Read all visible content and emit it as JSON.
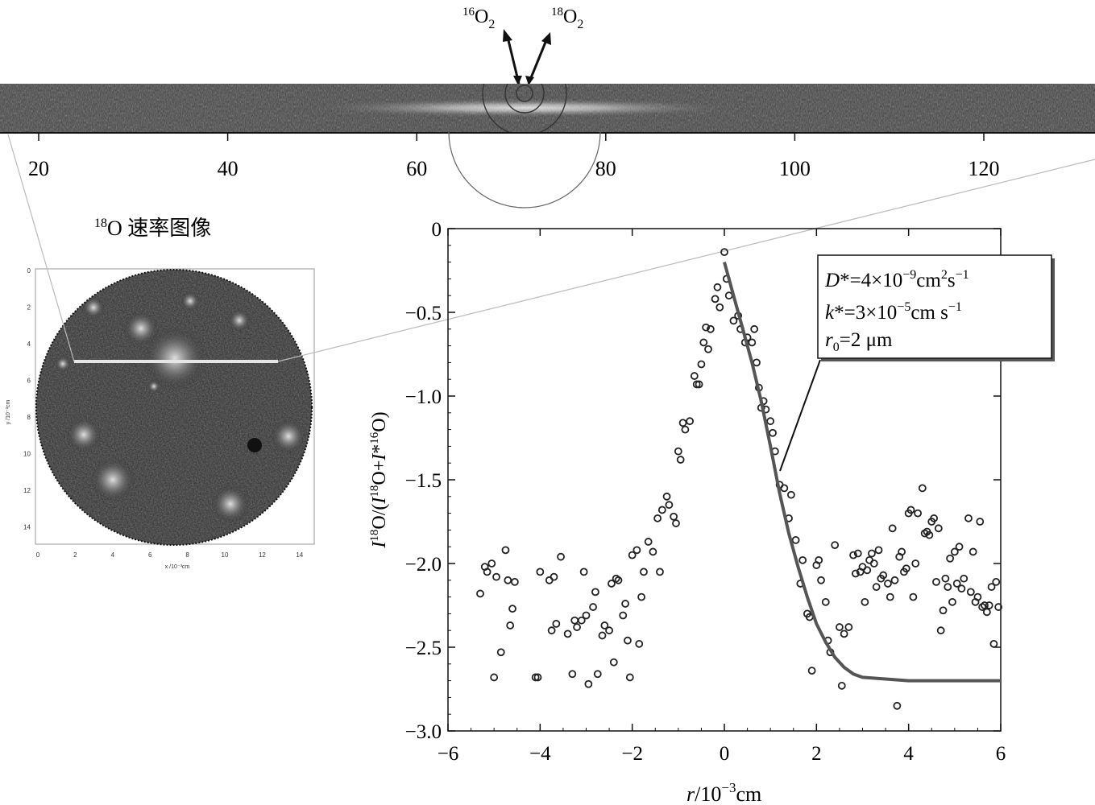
{
  "arrow_labels": {
    "left": {
      "sup": "16",
      "base": "O",
      "sub": "2"
    },
    "right": {
      "sup": "18",
      "base": "O",
      "sub": "2"
    }
  },
  "strip_ticks": [
    "20",
    "40",
    "60",
    "80",
    "100",
    "120"
  ],
  "inset": {
    "title_sup": "18",
    "title_main": "O 速率图像",
    "y_ticks": [
      "0",
      "2",
      "4",
      "6",
      "8",
      "10",
      "12",
      "14"
    ],
    "x_ticks": [
      "0",
      "2",
      "4",
      "6",
      "8",
      "10",
      "12",
      "14"
    ],
    "y_axis_label": "y /10⁻³cm",
    "x_axis_label": "x /10⁻³cm"
  },
  "legend": {
    "line1": {
      "italic": "D",
      "rest": "*=4×10",
      "sup": "−9",
      "unit": "cm",
      "unit_sup": "2",
      "unit_rest": "s",
      "unit_rest_sup": "−1"
    },
    "line2": {
      "italic": "k",
      "rest": "*=3×10",
      "sup": "−5",
      "unit": "cm s",
      "unit_sup": "−1"
    },
    "line3": {
      "italic": "r",
      "sub": "0",
      "rest": "=2 μm"
    }
  },
  "chart_data": {
    "type": "scatter",
    "xlabel": {
      "italic": "r",
      "rest": "/10",
      "sup": "−3",
      "unit": "cm"
    },
    "ylabel": "I18O/(I18O+I*16O)",
    "xlim": [
      -6,
      6
    ],
    "ylim": [
      -3.0,
      0
    ],
    "x_ticks": [
      "−6",
      "−4",
      "−2",
      "0",
      "2",
      "4",
      "6"
    ],
    "y_ticks": [
      "0",
      "−0.5",
      "−1.0",
      "−1.5",
      "−2.0",
      "−2.5",
      "−3.0"
    ],
    "series": [
      {
        "points": [
          [
            -5.3,
            -2.18
          ],
          [
            -5.2,
            -2.02
          ],
          [
            -5.15,
            -2.05
          ],
          [
            -5.05,
            -2.0
          ],
          [
            -5.0,
            -2.68
          ],
          [
            -4.95,
            -2.08
          ],
          [
            -4.85,
            -2.53
          ],
          [
            -4.75,
            -1.92
          ],
          [
            -4.7,
            -2.1
          ],
          [
            -4.65,
            -2.37
          ],
          [
            -4.6,
            -2.27
          ],
          [
            -4.55,
            -2.11
          ],
          [
            -4.1,
            -2.68
          ],
          [
            -4.05,
            -2.68
          ],
          [
            -4.0,
            -2.05
          ],
          [
            -3.8,
            -2.1
          ],
          [
            -3.75,
            -2.4
          ],
          [
            -3.7,
            -2.08
          ],
          [
            -3.65,
            -2.36
          ],
          [
            -3.55,
            -1.96
          ],
          [
            -3.4,
            -2.42
          ],
          [
            -3.3,
            -2.66
          ],
          [
            -3.25,
            -2.34
          ],
          [
            -3.2,
            -2.38
          ],
          [
            -3.1,
            -2.34
          ],
          [
            -3.05,
            -2.05
          ],
          [
            -3.0,
            -2.31
          ],
          [
            -2.95,
            -2.72
          ],
          [
            -2.85,
            -2.26
          ],
          [
            -2.8,
            -2.17
          ],
          [
            -2.75,
            -2.66
          ],
          [
            -2.65,
            -2.43
          ],
          [
            -2.6,
            -2.37
          ],
          [
            -2.5,
            -2.4
          ],
          [
            -2.45,
            -2.12
          ],
          [
            -2.4,
            -2.59
          ],
          [
            -2.35,
            -2.09
          ],
          [
            -2.3,
            -2.1
          ],
          [
            -2.2,
            -2.31
          ],
          [
            -2.15,
            -2.24
          ],
          [
            -2.1,
            -2.46
          ],
          [
            -2.05,
            -2.68
          ],
          [
            -2.0,
            -1.95
          ],
          [
            -1.9,
            -1.92
          ],
          [
            -1.85,
            -2.48
          ],
          [
            -1.8,
            -2.2
          ],
          [
            -1.75,
            -2.05
          ],
          [
            -1.65,
            -1.87
          ],
          [
            -1.55,
            -1.93
          ],
          [
            -1.45,
            -1.73
          ],
          [
            -1.4,
            -2.05
          ],
          [
            -1.35,
            -1.68
          ],
          [
            -1.25,
            -1.6
          ],
          [
            -1.2,
            -1.65
          ],
          [
            -1.1,
            -1.72
          ],
          [
            -1.05,
            -1.76
          ],
          [
            -1.0,
            -1.33
          ],
          [
            -0.95,
            -1.38
          ],
          [
            -0.9,
            -1.16
          ],
          [
            -0.85,
            -1.2
          ],
          [
            -0.75,
            -1.15
          ],
          [
            -0.65,
            -0.88
          ],
          [
            -0.6,
            -0.93
          ],
          [
            -0.55,
            -0.93
          ],
          [
            -0.5,
            -0.81
          ],
          [
            -0.45,
            -0.68
          ],
          [
            -0.4,
            -0.59
          ],
          [
            -0.35,
            -0.72
          ],
          [
            -0.3,
            -0.6
          ],
          [
            -0.2,
            -0.42
          ],
          [
            -0.15,
            -0.35
          ],
          [
            -0.1,
            -0.47
          ],
          [
            0.0,
            -0.14
          ],
          [
            0.05,
            -0.3
          ],
          [
            0.1,
            -0.4
          ],
          [
            0.2,
            -0.55
          ],
          [
            0.3,
            -0.52
          ],
          [
            0.35,
            -0.6
          ],
          [
            0.45,
            -0.68
          ],
          [
            0.5,
            -0.65
          ],
          [
            0.6,
            -0.68
          ],
          [
            0.65,
            -0.6
          ],
          [
            0.7,
            -0.8
          ],
          [
            0.75,
            -0.95
          ],
          [
            0.8,
            -1.07
          ],
          [
            0.85,
            -1.03
          ],
          [
            0.9,
            -1.08
          ],
          [
            1.0,
            -1.15
          ],
          [
            1.05,
            -1.22
          ],
          [
            1.1,
            -1.33
          ],
          [
            1.2,
            -1.53
          ],
          [
            1.3,
            -1.55
          ],
          [
            1.4,
            -1.73
          ],
          [
            1.45,
            -1.59
          ],
          [
            1.55,
            -1.86
          ],
          [
            1.65,
            -2.12
          ],
          [
            1.7,
            -1.98
          ],
          [
            1.8,
            -2.3
          ],
          [
            1.85,
            -2.32
          ],
          [
            1.9,
            -2.64
          ],
          [
            2.0,
            -2.01
          ],
          [
            2.05,
            -1.98
          ],
          [
            2.1,
            -2.1
          ],
          [
            2.2,
            -2.23
          ],
          [
            2.25,
            -2.46
          ],
          [
            2.3,
            -2.53
          ],
          [
            2.4,
            -1.89
          ],
          [
            2.5,
            -2.38
          ],
          [
            2.55,
            -2.73
          ],
          [
            2.6,
            -2.42
          ],
          [
            2.7,
            -2.38
          ],
          [
            2.8,
            -1.95
          ],
          [
            2.85,
            -2.06
          ],
          [
            2.9,
            -1.94
          ],
          [
            2.95,
            -2.05
          ],
          [
            3.0,
            -2.02
          ],
          [
            3.05,
            -2.23
          ],
          [
            3.1,
            -2.04
          ],
          [
            3.15,
            -1.98
          ],
          [
            3.2,
            -1.94
          ],
          [
            3.25,
            -2.0
          ],
          [
            3.3,
            -2.14
          ],
          [
            3.35,
            -1.92
          ],
          [
            3.4,
            -2.09
          ],
          [
            3.45,
            -2.07
          ],
          [
            3.55,
            -2.12
          ],
          [
            3.6,
            -2.2
          ],
          [
            3.65,
            -1.79
          ],
          [
            3.7,
            -2.1
          ],
          [
            3.75,
            -2.85
          ],
          [
            3.8,
            -1.96
          ],
          [
            3.85,
            -1.93
          ],
          [
            3.9,
            -2.05
          ],
          [
            3.95,
            -2.03
          ],
          [
            4.0,
            -1.7
          ],
          [
            4.05,
            -1.68
          ],
          [
            4.1,
            -2.2
          ],
          [
            4.15,
            -2.0
          ],
          [
            4.2,
            -1.7
          ],
          [
            4.3,
            -1.55
          ],
          [
            4.35,
            -1.82
          ],
          [
            4.4,
            -1.81
          ],
          [
            4.45,
            -1.83
          ],
          [
            4.5,
            -1.75
          ],
          [
            4.55,
            -1.73
          ],
          [
            4.6,
            -2.11
          ],
          [
            4.65,
            -1.79
          ],
          [
            4.7,
            -2.4
          ],
          [
            4.75,
            -2.28
          ],
          [
            4.8,
            -2.09
          ],
          [
            4.85,
            -2.14
          ],
          [
            4.9,
            -1.97
          ],
          [
            4.95,
            -2.23
          ],
          [
            5.0,
            -1.93
          ],
          [
            5.05,
            -2.12
          ],
          [
            5.1,
            -1.9
          ],
          [
            5.15,
            -2.15
          ],
          [
            5.2,
            -2.09
          ],
          [
            5.3,
            -1.73
          ],
          [
            5.35,
            -2.17
          ],
          [
            5.4,
            -1.93
          ],
          [
            5.45,
            -2.23
          ],
          [
            5.5,
            -2.2
          ],
          [
            5.55,
            -1.75
          ],
          [
            5.6,
            -2.26
          ],
          [
            5.65,
            -2.25
          ],
          [
            5.7,
            -2.29
          ],
          [
            5.75,
            -2.25
          ],
          [
            5.8,
            -2.14
          ],
          [
            5.85,
            -2.48
          ],
          [
            5.9,
            -2.11
          ],
          [
            5.95,
            -2.26
          ]
        ]
      },
      {
        "type": "line",
        "points": [
          [
            0.0,
            -0.2
          ],
          [
            0.2,
            -0.4
          ],
          [
            0.4,
            -0.6
          ],
          [
            0.6,
            -0.8
          ],
          [
            0.8,
            -1.03
          ],
          [
            1.0,
            -1.3
          ],
          [
            1.2,
            -1.58
          ],
          [
            1.4,
            -1.82
          ],
          [
            1.6,
            -2.02
          ],
          [
            1.8,
            -2.2
          ],
          [
            2.0,
            -2.36
          ],
          [
            2.2,
            -2.47
          ],
          [
            2.4,
            -2.56
          ],
          [
            2.6,
            -2.62
          ],
          [
            2.8,
            -2.66
          ],
          [
            3.0,
            -2.68
          ],
          [
            3.5,
            -2.69
          ],
          [
            4.0,
            -2.7
          ],
          [
            5.0,
            -2.7
          ],
          [
            6.0,
            -2.7
          ]
        ]
      }
    ]
  }
}
